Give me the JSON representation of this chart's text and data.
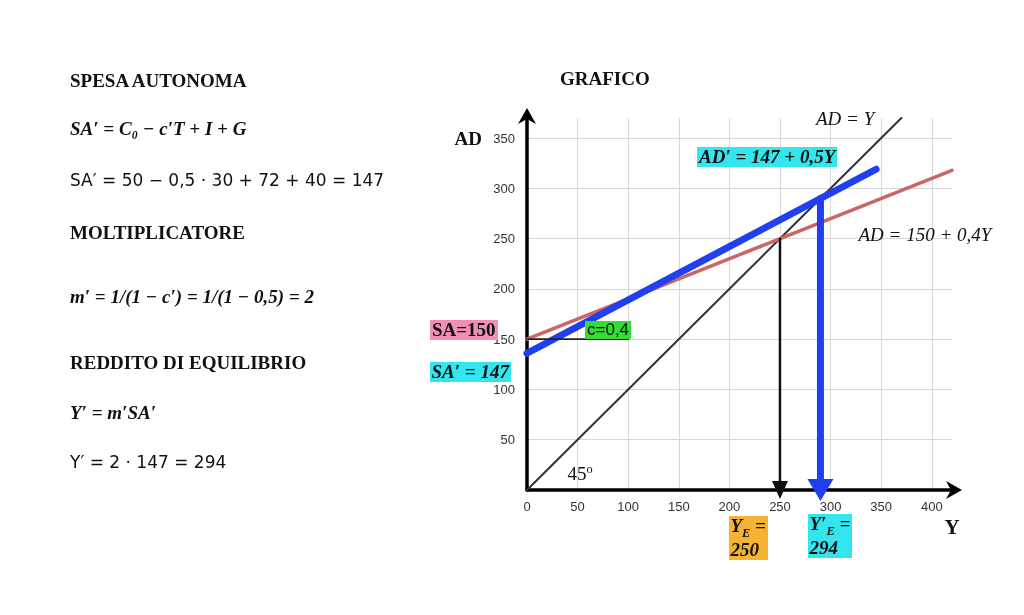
{
  "chart_data": [
    {
      "type": "other",
      "annotations": [
        "SPESA AUTONOMA",
        "SA′ = C₀ − c′T + I + G",
        "SA′ = 50 − 0,5 · 30 + 72 + 40 = 147",
        "MOLTIPLICATORE",
        "m′ = 1/(1 − c′) = 1/(1 − 0,5) = 2",
        "REDDITO DI EQUILIBRIO",
        "Y′ = m′SA′",
        "Y′ = 2 · 147 = 294"
      ]
    },
    {
      "type": "line",
      "title": "GRAFICO",
      "xlabel": "Y",
      "ylabel": "AD",
      "xlim": [
        0,
        420
      ],
      "ylim": [
        0,
        370
      ],
      "xticks": [
        0,
        50,
        100,
        150,
        200,
        250,
        300,
        350,
        400
      ],
      "yticks": [
        {
          "value": 0,
          "label": null
        },
        50,
        100,
        150,
        200,
        250,
        300,
        350
      ],
      "grid": true,
      "marker": "none",
      "line_style": "solid",
      "series": [
        {
          "color": "#333333",
          "x": [
            0,
            370
          ],
          "values": [
            0,
            370
          ]
        },
        {
          "color": "#cc6666",
          "x": [
            0,
            420
          ],
          "values": [
            150,
            318
          ]
        },
        {
          "color": "#1f3ff0",
          "x": [
            0,
            345
          ],
          "values": [
            136,
            319
          ]
        },
        {
          "color": "#222222",
          "x": [
            0,
            100
          ],
          "values": [
            150,
            150
          ]
        },
        {
          "color": "#111111",
          "x": [
            250,
            250
          ],
          "values": [
            250,
            0
          ],
          "marker": "triangle"
        },
        {
          "color": "#1f3ff0",
          "x": [
            290,
            290
          ],
          "values": [
            290,
            0
          ],
          "marker": "triangle"
        }
      ],
      "annotations": [
        "AD = Y",
        "AD′ = 147 + 0,5Y",
        "AD = 150 + 0,4Y",
        "c=0,4",
        "45$^{o}$",
        "SA=150",
        "SA′ = 147",
        "Y$_{E}$ =\n250",
        "Y′$_{E}$ =\n294"
      ]
    }
  ]
}
